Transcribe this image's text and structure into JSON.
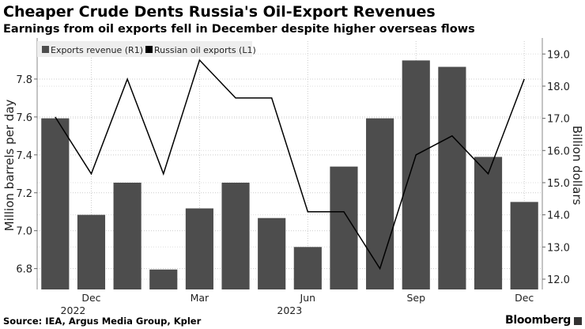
{
  "title": "Cheaper Crude Dents Russia's Oil-Export Revenues",
  "subtitle": "Earnings from oil exports fell in December despite higher overseas flows",
  "source": "Source: IEA, Argus Media Group, Kpler",
  "brand": "Bloomberg",
  "chart_data": {
    "type": "bar+line",
    "months": [
      "Nov 2022",
      "Dec 2022",
      "Jan 2023",
      "Feb 2023",
      "Mar 2023",
      "Apr 2023",
      "May 2023",
      "Jun 2023",
      "Jul 2023",
      "Aug 2023",
      "Sep 2023",
      "Oct 2023",
      "Nov 2023",
      "Dec 2023"
    ],
    "x_tick_labels": [
      {
        "month_index": 1,
        "label": "Dec",
        "year": "2022"
      },
      {
        "month_index": 4,
        "label": "Mar",
        "year": ""
      },
      {
        "month_index": 7,
        "label": "Jun",
        "year": "2023"
      },
      {
        "month_index": 10,
        "label": "Sep",
        "year": ""
      },
      {
        "month_index": 13,
        "label": "Dec",
        "year": ""
      }
    ],
    "series": [
      {
        "name": "Exports revenue (R1)",
        "type": "bar",
        "axis": "right",
        "color": "#4d4d4d",
        "values": [
          17.0,
          14.0,
          15.0,
          12.3,
          14.2,
          15.0,
          13.9,
          13.0,
          15.5,
          17.0,
          18.8,
          18.6,
          15.8,
          14.4
        ]
      },
      {
        "name": "Russian oil exports (L1)",
        "type": "line",
        "axis": "left",
        "color": "#000000",
        "values": [
          7.6,
          7.3,
          7.8,
          7.3,
          7.9,
          7.7,
          7.7,
          7.1,
          7.1,
          6.8,
          7.4,
          7.5,
          7.3,
          7.8
        ]
      }
    ],
    "left_axis": {
      "label": "Million barrels per day",
      "ticks": [
        "6.8",
        "7.0",
        "7.2",
        "7.4",
        "7.6",
        "7.8"
      ],
      "range": [
        6.69,
        8.0
      ]
    },
    "right_axis": {
      "label": "Billion dollars",
      "ticks": [
        "12.0",
        "13.0",
        "14.0",
        "15.0",
        "16.0",
        "17.0",
        "18.0",
        "19.0"
      ],
      "range": [
        11.68,
        19.4
      ]
    },
    "grid": true,
    "legend_placement": "top-left"
  }
}
